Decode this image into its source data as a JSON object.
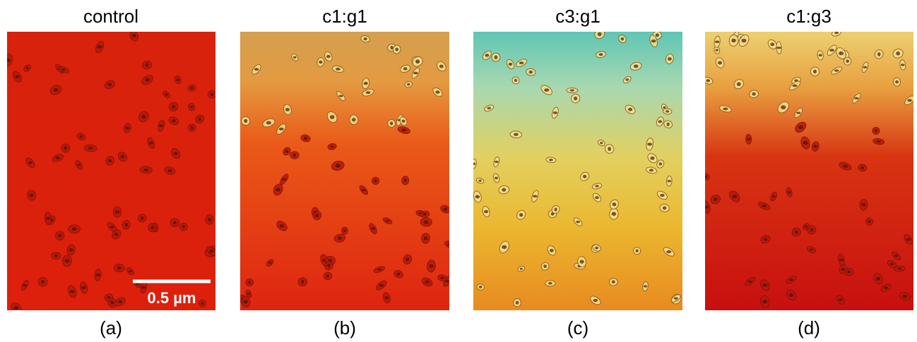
{
  "panels": [
    {
      "title": "control",
      "label": "(a)"
    },
    {
      "title": "c1:g1",
      "label": "(b)"
    },
    {
      "title": "c3:g1",
      "label": "(c)"
    },
    {
      "title": "c1:g3",
      "label": "(d)"
    }
  ],
  "scale_bar": "0.5 µm"
}
